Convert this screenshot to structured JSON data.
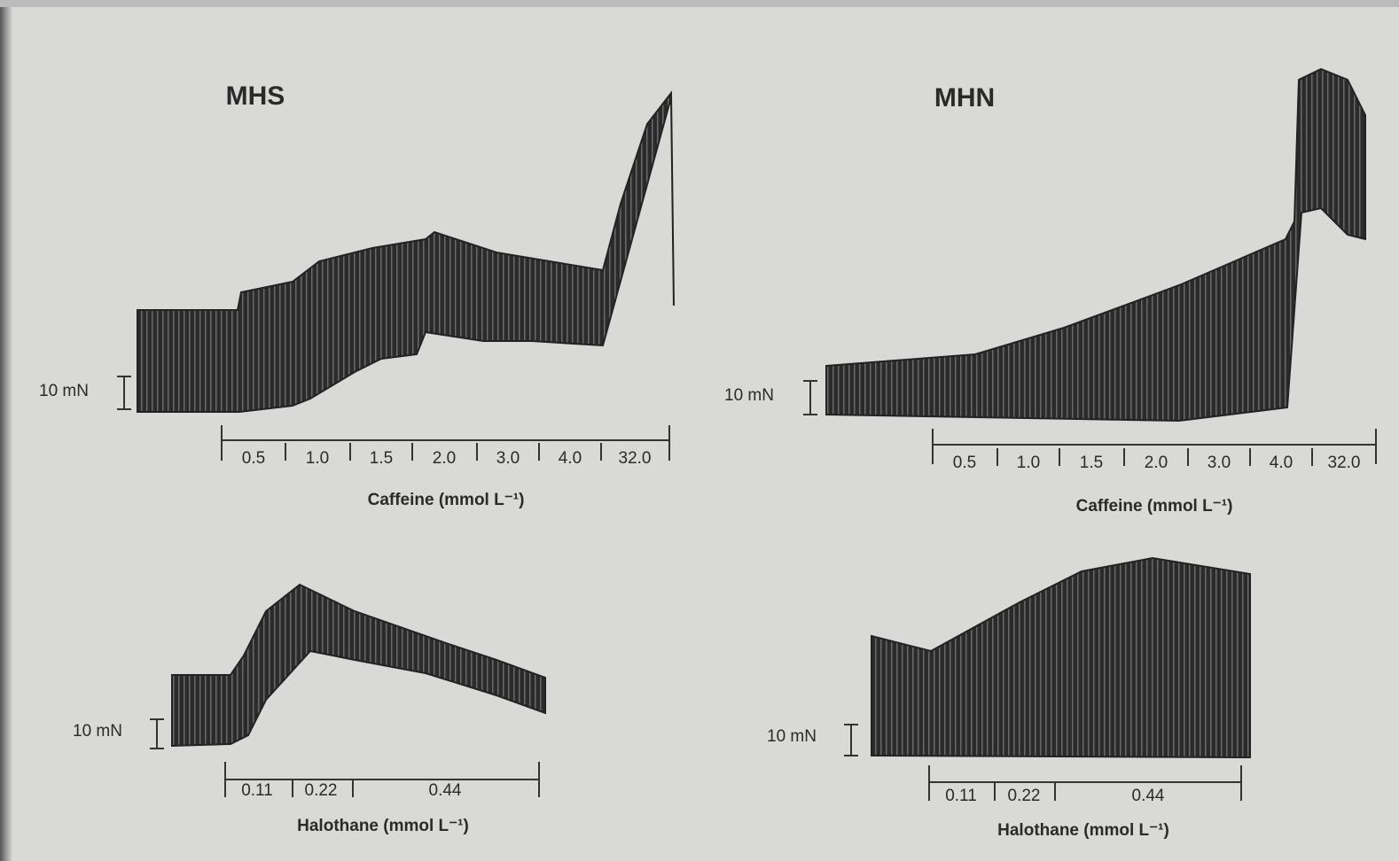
{
  "panels": [
    {
      "title": "MHS",
      "caffeine": {
        "scale": "10 mN",
        "segments": [
          "0.5",
          "1.0",
          "1.5",
          "2.0",
          "3.0",
          "4.0",
          "32.0"
        ],
        "axis_label": "Caffeine (mmol L⁻¹)"
      },
      "halothane": {
        "scale": "10 mN",
        "segments": [
          "0.11",
          "0.22",
          "0.44"
        ],
        "axis_label": "Halothane (mmol L⁻¹)"
      }
    },
    {
      "title": "MHN",
      "caffeine": {
        "scale": "10 mN",
        "segments": [
          "0.5",
          "1.0",
          "1.5",
          "2.0",
          "3.0",
          "4.0",
          "32.0"
        ],
        "axis_label": "Caffeine (mmol L⁻¹)"
      },
      "halothane": {
        "scale": "10 mN",
        "segments": [
          "0.11",
          "0.22",
          "0.44"
        ],
        "axis_label": "Halothane (mmol L⁻¹)"
      }
    }
  ]
}
